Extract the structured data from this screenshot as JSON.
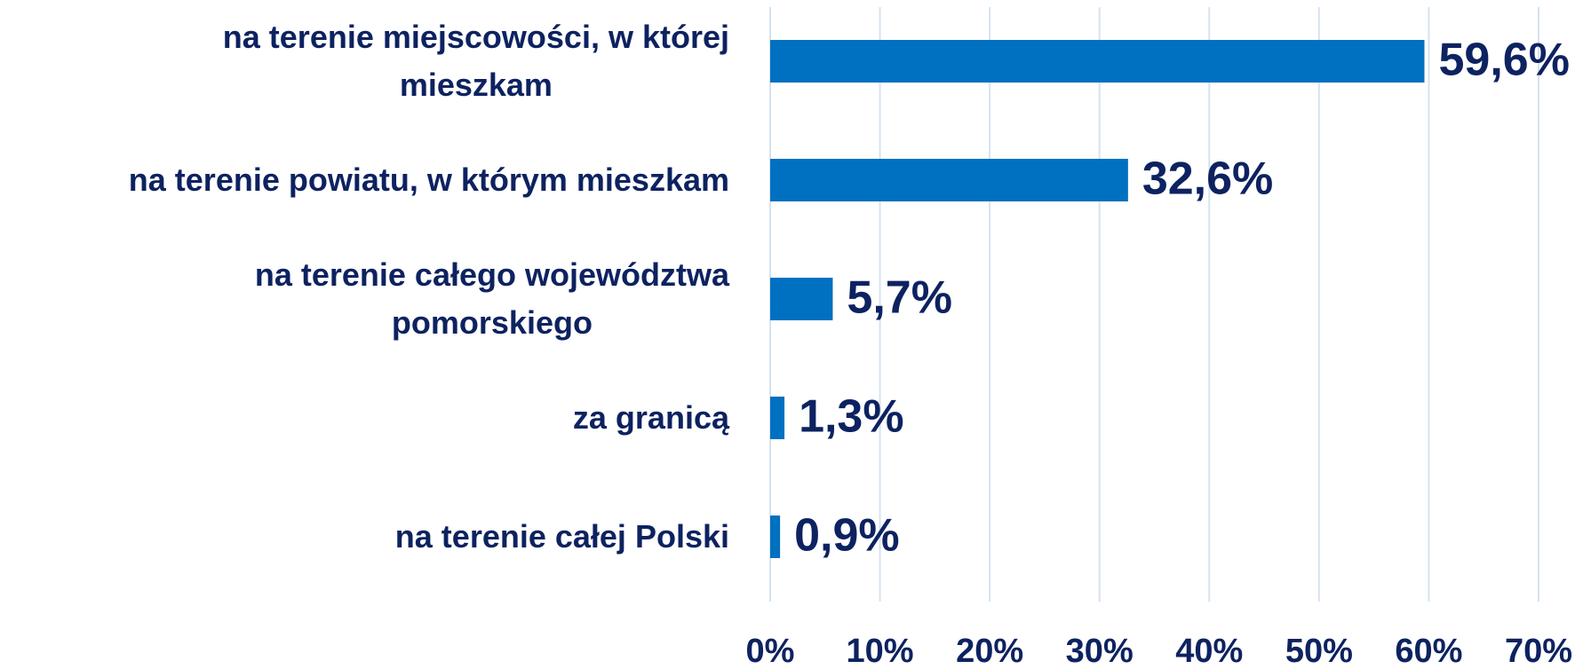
{
  "chart_data": {
    "type": "bar",
    "orientation": "horizontal",
    "categories": [
      "na terenie miejscowości, w której\nmieszkam",
      "na terenie powiatu, w którym mieszkam",
      "na terenie całego województwa\npomorskiego",
      "za granicą",
      "na terenie całej Polski"
    ],
    "values": [
      59.6,
      32.6,
      5.7,
      1.3,
      0.9
    ],
    "value_labels": [
      "59,6%",
      "32,6%",
      "5,7%",
      "1,3%",
      "0,9%"
    ],
    "color": "#0070c0",
    "xlim": [
      0,
      70
    ],
    "xticks": [
      {
        "value": 0,
        "label": "0%"
      },
      {
        "value": 10,
        "label": "10%"
      },
      {
        "value": 20,
        "label": "20%"
      },
      {
        "value": 30,
        "label": "30%"
      },
      {
        "value": 40,
        "label": "40%"
      },
      {
        "value": 50,
        "label": "50%"
      },
      {
        "value": 60,
        "label": "60%"
      },
      {
        "value": 70,
        "label": "70%"
      }
    ],
    "grid": true
  }
}
